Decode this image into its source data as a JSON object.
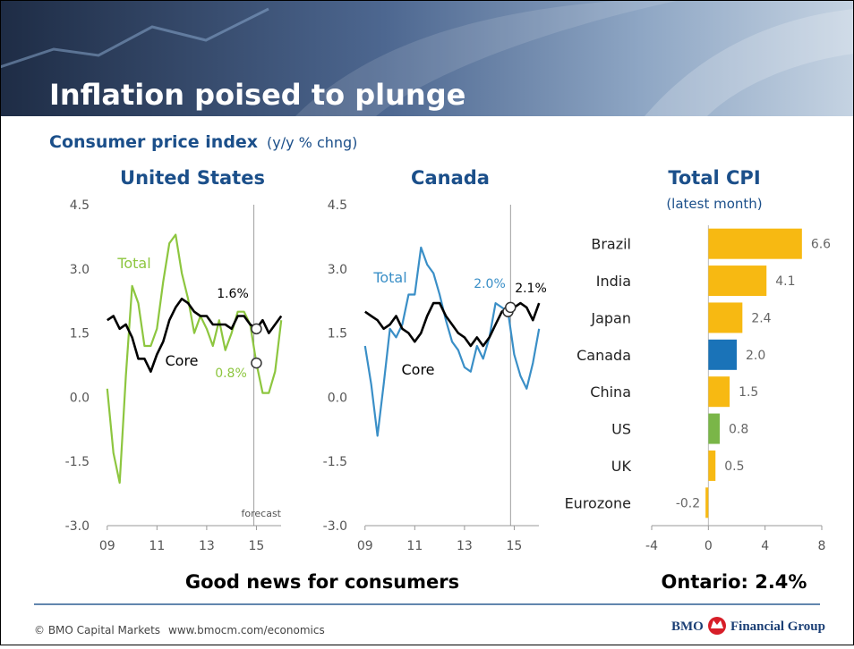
{
  "title": "Inflation poised to plunge",
  "subtitle": "Consumer price index",
  "subtitle_unit": "(y/y % chng)",
  "chart_data": [
    {
      "type": "line",
      "title": "United States",
      "x": [
        2009,
        2009.25,
        2009.5,
        2009.75,
        2010,
        2010.25,
        2010.5,
        2010.75,
        2011,
        2011.25,
        2011.5,
        2011.75,
        2012,
        2012.25,
        2012.5,
        2012.75,
        2013,
        2013.25,
        2013.5,
        2013.75,
        2014,
        2014.25,
        2014.5,
        2014.75,
        2015,
        2015.25,
        2015.5,
        2015.75,
        2016
      ],
      "series": [
        {
          "name": "Total",
          "color": "#8dc63f",
          "values": [
            0.2,
            -1.3,
            -2.0,
            0.5,
            2.6,
            2.2,
            1.2,
            1.2,
            1.6,
            2.7,
            3.6,
            3.8,
            2.9,
            2.3,
            1.5,
            1.9,
            1.6,
            1.2,
            1.8,
            1.1,
            1.5,
            2.0,
            2.0,
            1.7,
            0.8,
            0.1,
            0.1,
            0.6,
            1.8
          ]
        },
        {
          "name": "Core",
          "color": "#000000",
          "values": [
            1.8,
            1.9,
            1.6,
            1.7,
            1.4,
            0.9,
            0.9,
            0.6,
            1.0,
            1.3,
            1.8,
            2.1,
            2.3,
            2.2,
            2.0,
            1.9,
            1.9,
            1.7,
            1.7,
            1.7,
            1.6,
            1.9,
            1.9,
            1.7,
            1.6,
            1.8,
            1.5,
            1.7,
            1.9
          ]
        }
      ],
      "annotations": [
        {
          "text": "1.6%",
          "x": 2015,
          "y": 1.6
        },
        {
          "text": "0.8%",
          "x": 2015,
          "y": 0.8
        }
      ],
      "forecast": {
        "label": "forecast",
        "x": 2014.9
      },
      "xlim": [
        2008.9,
        2016.1
      ],
      "xticks": [
        {
          "value": 2009,
          "label": "09"
        },
        {
          "value": 2011,
          "label": "11"
        },
        {
          "value": 2013,
          "label": "13"
        },
        {
          "value": 2015,
          "label": "15"
        }
      ],
      "ylim": [
        -3,
        4.5
      ],
      "yticks": [
        {
          "value": -3,
          "label": "-3.0"
        },
        -1.5,
        {
          "value": 0,
          "label": "0.0"
        },
        1.5,
        {
          "value": 3,
          "label": "3.0"
        },
        4.5
      ]
    },
    {
      "type": "line",
      "title": "Canada",
      "x": [
        2009,
        2009.25,
        2009.5,
        2009.75,
        2010,
        2010.25,
        2010.5,
        2010.75,
        2011,
        2011.25,
        2011.5,
        2011.75,
        2012,
        2012.25,
        2012.5,
        2012.75,
        2013,
        2013.25,
        2013.5,
        2013.75,
        2014,
        2014.25,
        2014.5,
        2014.75,
        2015,
        2015.25,
        2015.5,
        2015.75,
        2016
      ],
      "series": [
        {
          "name": "Total",
          "color": "#3a8fc7",
          "values": [
            1.2,
            0.3,
            -0.9,
            0.3,
            1.6,
            1.4,
            1.7,
            2.4,
            2.4,
            3.5,
            3.1,
            2.9,
            2.4,
            1.8,
            1.3,
            1.1,
            0.7,
            0.6,
            1.2,
            0.9,
            1.4,
            2.2,
            2.1,
            2.0,
            1.0,
            0.5,
            0.2,
            0.8,
            1.6
          ]
        },
        {
          "name": "Core",
          "color": "#000000",
          "values": [
            2.0,
            1.9,
            1.8,
            1.6,
            1.7,
            1.9,
            1.6,
            1.5,
            1.3,
            1.5,
            1.9,
            2.2,
            2.2,
            1.9,
            1.7,
            1.5,
            1.4,
            1.2,
            1.4,
            1.2,
            1.4,
            1.7,
            2.0,
            2.1,
            2.1,
            2.2,
            2.1,
            1.8,
            2.2
          ]
        }
      ],
      "annotations": [
        {
          "text": "2.0%",
          "x": 2014.75,
          "y": 2.0
        },
        {
          "text": "2.1%",
          "x": 2014.85,
          "y": 2.1
        }
      ],
      "forecast": {
        "x": 2014.85
      },
      "xlim": [
        2008.9,
        2016.1
      ],
      "xticks": [
        {
          "value": 2009,
          "label": "09"
        },
        {
          "value": 2011,
          "label": "11"
        },
        {
          "value": 2013,
          "label": "13"
        },
        {
          "value": 2015,
          "label": "15"
        }
      ],
      "ylim": [
        -3,
        4.5
      ],
      "yticks": [
        {
          "value": -3,
          "label": "-3.0"
        },
        -1.5,
        {
          "value": 0,
          "label": "0.0"
        },
        1.5,
        {
          "value": 3,
          "label": "3.0"
        },
        4.5
      ]
    },
    {
      "type": "bar",
      "orientation": "horizontal",
      "title": "Total CPI",
      "subtitle": "(latest month)",
      "categories": [
        "Brazil",
        "India",
        "Japan",
        "Canada",
        "China",
        "US",
        "UK",
        "Eurozone"
      ],
      "values": [
        6.6,
        4.1,
        2.4,
        2.0,
        1.5,
        0.8,
        0.5,
        -0.2
      ],
      "value_labels": [
        "6.6",
        "4.1",
        "2.4",
        "2.0",
        "1.5",
        "0.8",
        "0.5",
        "-0.2"
      ],
      "colors": [
        "#f7b912",
        "#f7b912",
        "#f7b912",
        "#1a73b8",
        "#f7b912",
        "#7ab648",
        "#f7b912",
        "#f7b912"
      ],
      "xlim": [
        -4,
        8
      ],
      "xticks": [
        -4,
        0,
        4,
        8
      ]
    }
  ],
  "caption_left": "Good news for consumers",
  "caption_right": "Ontario: 2.4%",
  "footer": {
    "copyright": "© BMO Capital Markets",
    "url": "www.bmocm.com/economics",
    "brand": "BMO",
    "brand_suffix": "Financial Group"
  }
}
